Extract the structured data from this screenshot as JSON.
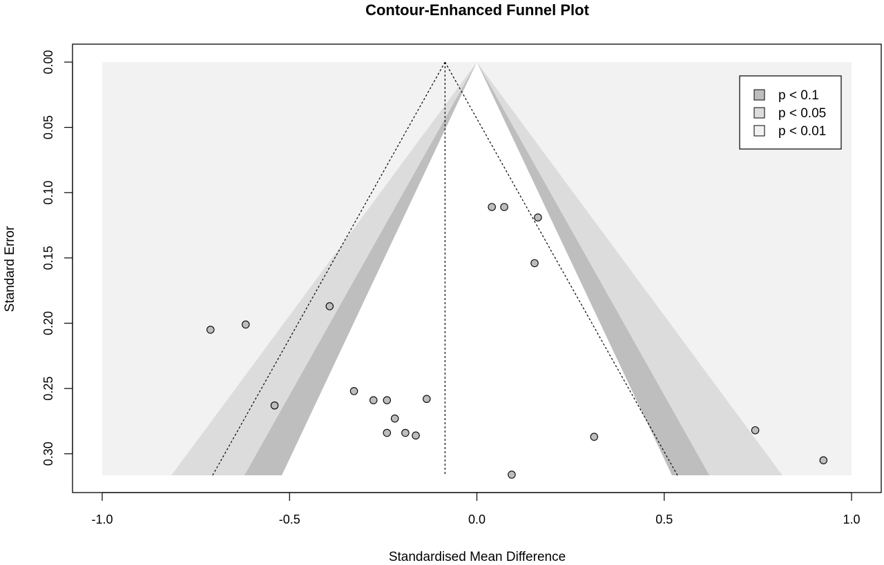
{
  "chart_data": {
    "type": "scatter",
    "title": "Contour-Enhanced Funnel Plot",
    "xlabel": "Standardised Mean Difference",
    "ylabel": "Standard Error",
    "xlim": [
      -1.0,
      1.0
    ],
    "ylim": [
      0.0,
      0.3165
    ],
    "y_reversed": true,
    "x_ticks": [
      "-1.0",
      "-0.5",
      "0.0",
      "0.5",
      "1.0"
    ],
    "y_ticks": [
      "0.00",
      "0.05",
      "0.10",
      "0.15",
      "0.20",
      "0.25",
      "0.30"
    ],
    "pooled_estimate": -0.085,
    "contour_center": 0.0,
    "contours": [
      {
        "label": "p < 0.1",
        "z": 1.645,
        "color": "#bebebe"
      },
      {
        "label": "p < 0.05",
        "z": 1.96,
        "color": "#dcdcdc"
      },
      {
        "label": "p < 0.01",
        "z": 2.576,
        "color": "#f2f2f2"
      }
    ],
    "legend_position": "top-right",
    "grid": false,
    "points": [
      {
        "x": 0.04,
        "y": 0.111
      },
      {
        "x": 0.073,
        "y": 0.111
      },
      {
        "x": 0.163,
        "y": 0.119
      },
      {
        "x": 0.154,
        "y": 0.154
      },
      {
        "x": -0.393,
        "y": 0.187
      },
      {
        "x": -0.617,
        "y": 0.201
      },
      {
        "x": -0.711,
        "y": 0.205
      },
      {
        "x": -0.328,
        "y": 0.252
      },
      {
        "x": -0.276,
        "y": 0.259
      },
      {
        "x": -0.24,
        "y": 0.259
      },
      {
        "x": -0.134,
        "y": 0.258
      },
      {
        "x": -0.54,
        "y": 0.263
      },
      {
        "x": -0.219,
        "y": 0.273
      },
      {
        "x": -0.24,
        "y": 0.284
      },
      {
        "x": -0.191,
        "y": 0.284
      },
      {
        "x": -0.163,
        "y": 0.286
      },
      {
        "x": 0.313,
        "y": 0.287
      },
      {
        "x": 0.743,
        "y": 0.282
      },
      {
        "x": 0.925,
        "y": 0.305
      },
      {
        "x": 0.093,
        "y": 0.316
      }
    ]
  }
}
